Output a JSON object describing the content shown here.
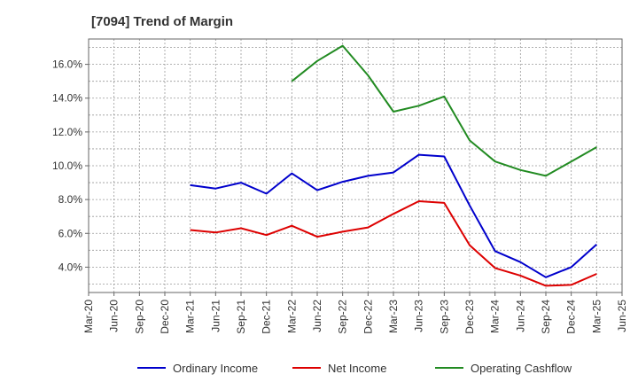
{
  "chart_data": {
    "type": "line",
    "title": "[7094]  Trend of Margin",
    "xlabel": "",
    "ylabel": "",
    "x": [
      "Mar-20",
      "Jun-20",
      "Sep-20",
      "Dec-20",
      "Mar-21",
      "Jun-21",
      "Sep-21",
      "Dec-21",
      "Mar-22",
      "Jun-22",
      "Sep-22",
      "Dec-22",
      "Mar-23",
      "Jun-23",
      "Sep-23",
      "Dec-23",
      "Mar-24",
      "Jun-24",
      "Sep-24",
      "Dec-24",
      "Mar-25",
      "Jun-25"
    ],
    "ylim": [
      2.5,
      17.5
    ],
    "yticks": [
      4.0,
      6.0,
      8.0,
      10.0,
      12.0,
      14.0,
      16.0
    ],
    "ytick_labels": [
      "4.0%",
      "6.0%",
      "8.0%",
      "10.0%",
      "12.0%",
      "14.0%",
      "16.0%"
    ],
    "grid": true,
    "legend_position": "bottom",
    "series": [
      {
        "name": "Ordinary Income",
        "color": "#0000cc",
        "values": [
          null,
          null,
          null,
          null,
          8.85,
          8.65,
          9.0,
          8.35,
          9.55,
          8.55,
          9.05,
          9.4,
          9.6,
          10.65,
          10.55,
          7.65,
          4.95,
          4.3,
          3.4,
          4.0,
          5.35,
          null
        ]
      },
      {
        "name": "Net Income",
        "color": "#dd0000",
        "values": [
          null,
          null,
          null,
          null,
          6.2,
          6.05,
          6.3,
          5.9,
          6.45,
          5.8,
          6.1,
          6.35,
          7.15,
          7.9,
          7.8,
          5.3,
          3.95,
          3.5,
          2.9,
          2.95,
          3.6,
          null
        ]
      },
      {
        "name": "Operating Cashflow",
        "color": "#228b22",
        "values": [
          null,
          null,
          null,
          null,
          null,
          null,
          null,
          null,
          15.0,
          16.2,
          17.1,
          15.35,
          13.2,
          13.55,
          14.1,
          11.5,
          10.25,
          9.75,
          9.4,
          10.25,
          11.1,
          null
        ]
      }
    ]
  }
}
